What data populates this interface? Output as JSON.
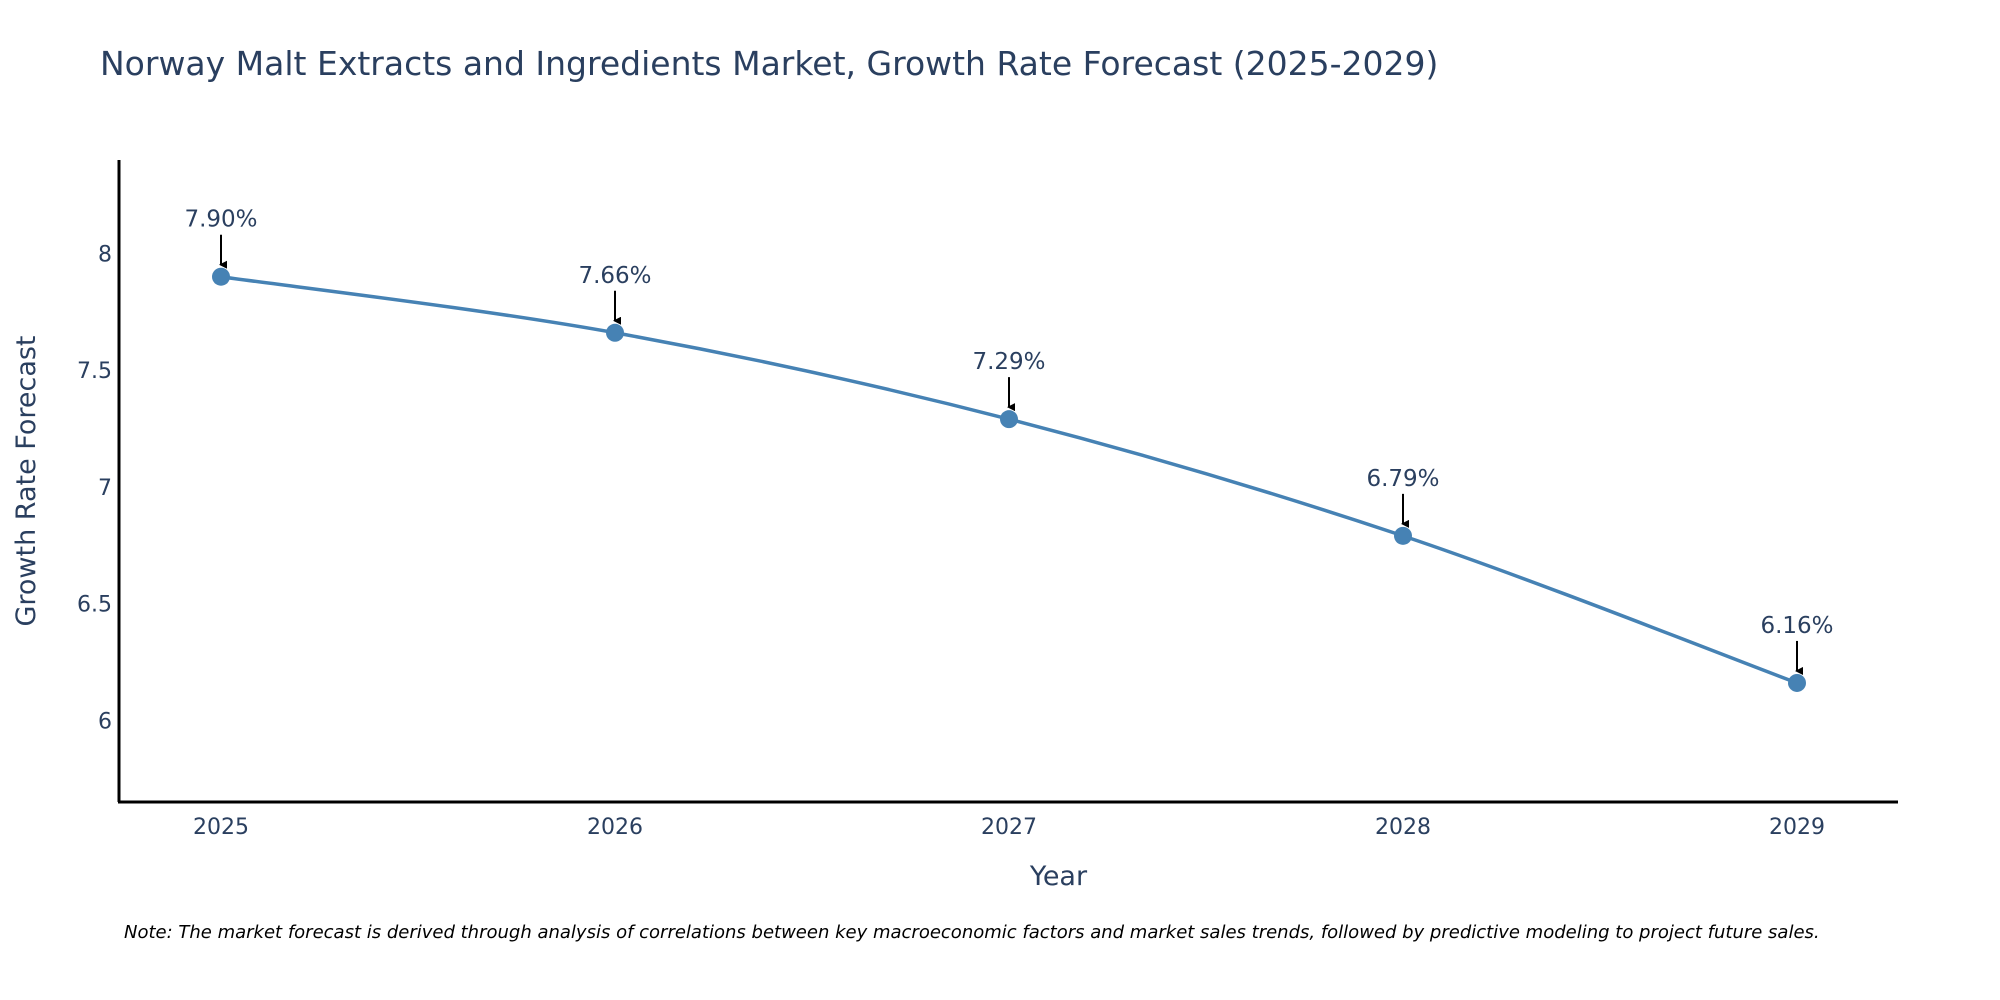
{
  "chart_data": {
    "type": "line",
    "title": "Norway Malt Extracts and Ingredients Market, Growth Rate Forecast (2025-2029)",
    "xlabel": "Year",
    "ylabel": "Growth Rate Forecast",
    "categories": [
      "2025",
      "2026",
      "2027",
      "2028",
      "2029"
    ],
    "values": [
      7.9,
      7.66,
      7.29,
      6.79,
      6.16
    ],
    "data_labels": [
      "7.90%",
      "7.66%",
      "7.29%",
      "6.79%",
      "6.16%"
    ],
    "yticks": [
      6,
      6.5,
      7,
      7.5,
      8
    ],
    "ytick_labels": [
      "6",
      "6.5",
      "7",
      "7.5",
      "8"
    ],
    "ylim": [
      5.65,
      8.4
    ],
    "grid": false,
    "line_color": "#4682b4",
    "note": "Note: The market forecast is derived through analysis of correlations between key macroeconomic factors and market sales trends, followed by predictive modeling to project future sales."
  }
}
